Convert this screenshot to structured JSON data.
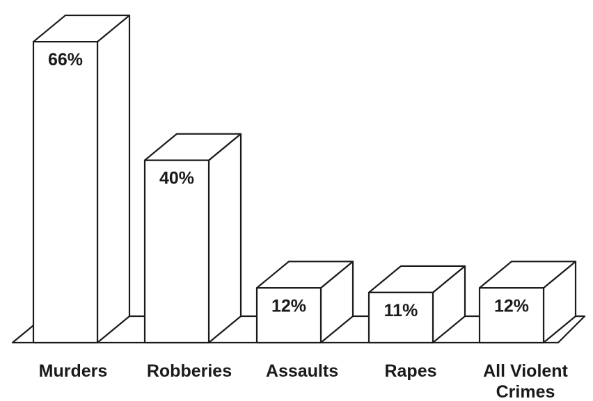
{
  "chart_data": {
    "type": "bar",
    "style": "3d-bar",
    "categories": [
      "Murders",
      "Robberies",
      "Assaults",
      "Rapes",
      "All Violent Crimes"
    ],
    "category_lines": [
      [
        "Murders"
      ],
      [
        "Robberies"
      ],
      [
        "Assaults"
      ],
      [
        "Rapes"
      ],
      [
        "All Violent",
        "Crimes"
      ]
    ],
    "values": [
      66,
      40,
      12,
      11,
      12
    ],
    "value_labels": [
      "66%",
      "40%",
      "12%",
      "11%",
      "12%"
    ],
    "unit": "%",
    "title": "",
    "xlabel": "",
    "ylabel": "",
    "ylim": [
      0,
      70
    ],
    "grid": false,
    "legend": "none",
    "colors": {
      "fill": "#ffffff",
      "stroke": "#1a1a1a",
      "text": "#1a1a1a"
    }
  }
}
